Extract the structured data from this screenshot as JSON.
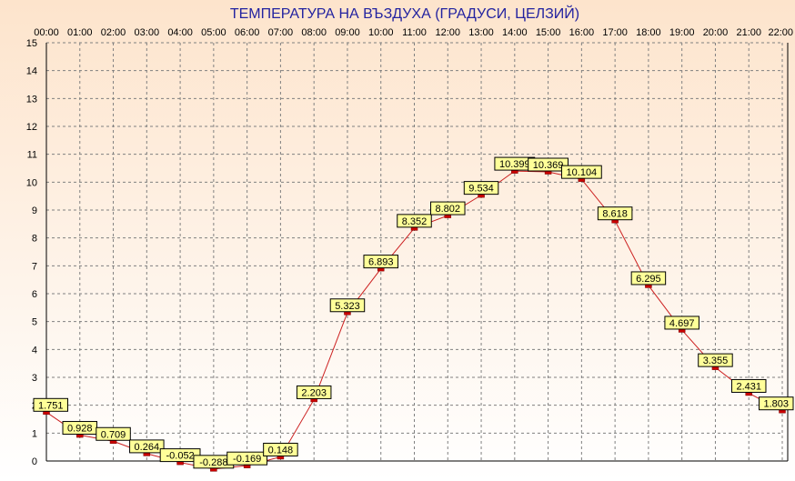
{
  "chart_data": {
    "type": "line",
    "title": "ТЕМПЕРАТУРА НА ВЪЗДУХА  (ГРАДУСИ, ЦЕЛЗИЙ)",
    "categories": [
      "00:00",
      "01:00",
      "02:00",
      "03:00",
      "04:00",
      "05:00",
      "06:00",
      "07:00",
      "08:00",
      "09:00",
      "10:00",
      "11:00",
      "12:00",
      "13:00",
      "14:00",
      "15:00",
      "16:00",
      "17:00",
      "18:00",
      "19:00",
      "20:00",
      "21:00",
      "22:00"
    ],
    "series": [
      {
        "values": [
          1.751,
          0.928,
          0.709,
          0.264,
          -0.052,
          -0.288,
          -0.169,
          0.148,
          2.203,
          5.323,
          6.893,
          8.352,
          8.802,
          9.534,
          10.399,
          10.369,
          10.104,
          8.618,
          6.295,
          4.697,
          3.355,
          2.431,
          1.803
        ],
        "labels": [
          "1.751",
          "0.928",
          "0.709",
          "0.264",
          "-0.052",
          "-0.288",
          "-0.169",
          "0.148",
          "2.203",
          "5.323",
          "6.893",
          "8.352",
          "8.802",
          "9.534",
          "10.399",
          "10.369",
          "10.104",
          "8.618",
          "6.295",
          "4.697",
          "3.355",
          "2.431",
          "1.803"
        ]
      }
    ],
    "yticks": [
      "0",
      "1",
      "2",
      "3",
      "4",
      "5",
      "6",
      "7",
      "8",
      "9",
      "10",
      "11",
      "12",
      "13",
      "14",
      "15"
    ],
    "ylim": [
      0,
      15
    ],
    "xaxis_position": "top",
    "grid": true,
    "colors": {
      "title": "#2323a0",
      "line": "#cc2020",
      "marker": "#cc0000",
      "label_fill": "#ffff99",
      "background_top": "#fde4cc",
      "background_bottom": "#ffffff"
    }
  }
}
